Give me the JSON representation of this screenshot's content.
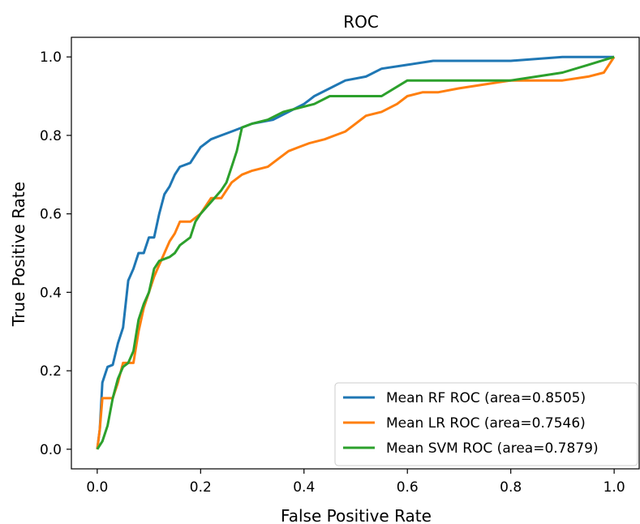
{
  "chart_data": {
    "type": "line",
    "title": "ROC",
    "xlabel": "False Positive Rate",
    "ylabel": "True Positive Rate",
    "xlim": [
      -0.05,
      1.05
    ],
    "ylim": [
      -0.05,
      1.05
    ],
    "xticks": [
      "0.0",
      "0.2",
      "0.4",
      "0.6",
      "0.8",
      "1.0"
    ],
    "yticks": [
      "0.0",
      "0.2",
      "0.4",
      "0.6",
      "0.8",
      "1.0"
    ],
    "grid": false,
    "legend_position": "lower-right",
    "series": [
      {
        "name": "Mean RF ROC (area=0.8505)",
        "color": "#1f77b4",
        "points": [
          [
            0,
            0
          ],
          [
            0.005,
            0.05
          ],
          [
            0.01,
            0.17
          ],
          [
            0.02,
            0.21
          ],
          [
            0.03,
            0.215
          ],
          [
            0.04,
            0.27
          ],
          [
            0.05,
            0.31
          ],
          [
            0.06,
            0.43
          ],
          [
            0.07,
            0.46
          ],
          [
            0.08,
            0.5
          ],
          [
            0.09,
            0.5
          ],
          [
            0.1,
            0.54
          ],
          [
            0.11,
            0.54
          ],
          [
            0.12,
            0.6
          ],
          [
            0.13,
            0.65
          ],
          [
            0.14,
            0.67
          ],
          [
            0.15,
            0.7
          ],
          [
            0.16,
            0.72
          ],
          [
            0.18,
            0.73
          ],
          [
            0.19,
            0.75
          ],
          [
            0.2,
            0.77
          ],
          [
            0.22,
            0.79
          ],
          [
            0.24,
            0.8
          ],
          [
            0.26,
            0.81
          ],
          [
            0.3,
            0.83
          ],
          [
            0.34,
            0.84
          ],
          [
            0.37,
            0.86
          ],
          [
            0.4,
            0.88
          ],
          [
            0.42,
            0.9
          ],
          [
            0.45,
            0.92
          ],
          [
            0.48,
            0.94
          ],
          [
            0.52,
            0.95
          ],
          [
            0.55,
            0.97
          ],
          [
            0.6,
            0.98
          ],
          [
            0.65,
            0.99
          ],
          [
            0.8,
            0.99
          ],
          [
            0.9,
            1.0
          ],
          [
            1.0,
            1.0
          ]
        ]
      },
      {
        "name": "Mean LR ROC (area=0.7546)",
        "color": "#ff7f0e",
        "points": [
          [
            0,
            0
          ],
          [
            0.005,
            0.05
          ],
          [
            0.01,
            0.13
          ],
          [
            0.03,
            0.13
          ],
          [
            0.04,
            0.17
          ],
          [
            0.05,
            0.22
          ],
          [
            0.06,
            0.22
          ],
          [
            0.07,
            0.22
          ],
          [
            0.08,
            0.3
          ],
          [
            0.09,
            0.36
          ],
          [
            0.1,
            0.4
          ],
          [
            0.11,
            0.44
          ],
          [
            0.12,
            0.47
          ],
          [
            0.13,
            0.5
          ],
          [
            0.14,
            0.53
          ],
          [
            0.15,
            0.55
          ],
          [
            0.16,
            0.58
          ],
          [
            0.18,
            0.58
          ],
          [
            0.2,
            0.6
          ],
          [
            0.22,
            0.64
          ],
          [
            0.24,
            0.64
          ],
          [
            0.26,
            0.68
          ],
          [
            0.28,
            0.7
          ],
          [
            0.3,
            0.71
          ],
          [
            0.33,
            0.72
          ],
          [
            0.35,
            0.74
          ],
          [
            0.37,
            0.76
          ],
          [
            0.39,
            0.77
          ],
          [
            0.41,
            0.78
          ],
          [
            0.44,
            0.79
          ],
          [
            0.46,
            0.8
          ],
          [
            0.48,
            0.81
          ],
          [
            0.5,
            0.83
          ],
          [
            0.52,
            0.85
          ],
          [
            0.55,
            0.86
          ],
          [
            0.58,
            0.88
          ],
          [
            0.6,
            0.9
          ],
          [
            0.63,
            0.91
          ],
          [
            0.66,
            0.91
          ],
          [
            0.7,
            0.92
          ],
          [
            0.75,
            0.93
          ],
          [
            0.8,
            0.94
          ],
          [
            0.85,
            0.94
          ],
          [
            0.9,
            0.94
          ],
          [
            0.95,
            0.95
          ],
          [
            0.98,
            0.96
          ],
          [
            1.0,
            1.0
          ]
        ]
      },
      {
        "name": "Mean SVM ROC (area=0.7879)",
        "color": "#2ca02c",
        "points": [
          [
            0,
            0
          ],
          [
            0.01,
            0.02
          ],
          [
            0.02,
            0.06
          ],
          [
            0.03,
            0.13
          ],
          [
            0.04,
            0.18
          ],
          [
            0.05,
            0.21
          ],
          [
            0.06,
            0.22
          ],
          [
            0.07,
            0.25
          ],
          [
            0.08,
            0.33
          ],
          [
            0.09,
            0.37
          ],
          [
            0.1,
            0.4
          ],
          [
            0.11,
            0.46
          ],
          [
            0.12,
            0.48
          ],
          [
            0.14,
            0.49
          ],
          [
            0.15,
            0.5
          ],
          [
            0.16,
            0.52
          ],
          [
            0.18,
            0.54
          ],
          [
            0.19,
            0.58
          ],
          [
            0.2,
            0.6
          ],
          [
            0.22,
            0.63
          ],
          [
            0.24,
            0.66
          ],
          [
            0.25,
            0.68
          ],
          [
            0.26,
            0.72
          ],
          [
            0.27,
            0.76
          ],
          [
            0.28,
            0.82
          ],
          [
            0.3,
            0.83
          ],
          [
            0.33,
            0.84
          ],
          [
            0.36,
            0.86
          ],
          [
            0.39,
            0.87
          ],
          [
            0.42,
            0.88
          ],
          [
            0.45,
            0.9
          ],
          [
            0.5,
            0.9
          ],
          [
            0.55,
            0.9
          ],
          [
            0.6,
            0.94
          ],
          [
            0.7,
            0.94
          ],
          [
            0.8,
            0.94
          ],
          [
            0.85,
            0.95
          ],
          [
            0.9,
            0.96
          ],
          [
            0.95,
            0.98
          ],
          [
            1.0,
            1.0
          ]
        ]
      }
    ]
  }
}
